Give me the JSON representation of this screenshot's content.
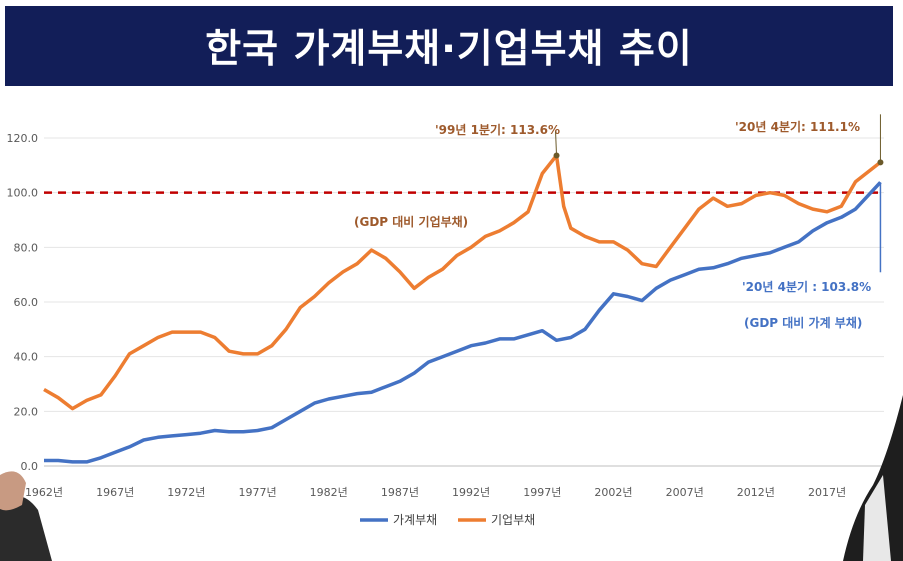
{
  "banner": {
    "title": "한국 가계부채·기업부채 추이"
  },
  "colors": {
    "banner": "#121e58",
    "household": "#4472c4",
    "corporate": "#ed7d31",
    "reference": "#c00000",
    "annotation_corp": "#9e5a2c",
    "annotation_hh": "#4472c4"
  },
  "chart_data": {
    "type": "line",
    "title": "",
    "xlabel": "",
    "ylabel": "",
    "ylim": [
      0,
      120
    ],
    "xlim": [
      1962,
      2021
    ],
    "y_ticks": [
      "0.0",
      "20.0",
      "40.0",
      "60.0",
      "80.0",
      "100.0",
      "120.0"
    ],
    "x_ticks": [
      "1962년",
      "1967년",
      "1972년",
      "1977년",
      "1982년",
      "1987년",
      "1992년",
      "1997년",
      "2002년",
      "2007년",
      "2012년",
      "2017년"
    ],
    "grid": "horizontal",
    "legend": "bottom",
    "reference_line": {
      "y": 100,
      "style": "dashed"
    },
    "series": [
      {
        "name": "가계부채",
        "x": [
          1962,
          1963,
          1964,
          1965,
          1966,
          1967,
          1968,
          1969,
          1970,
          1971,
          1972,
          1973,
          1974,
          1975,
          1976,
          1977,
          1978,
          1979,
          1980,
          1981,
          1982,
          1983,
          1984,
          1985,
          1986,
          1987,
          1988,
          1989,
          1990,
          1991,
          1992,
          1993,
          1994,
          1995,
          1996,
          1997,
          1998,
          1999,
          2000,
          2001,
          2002,
          2003,
          2004,
          2005,
          2006,
          2007,
          2008,
          2009,
          2010,
          2011,
          2012,
          2013,
          2014,
          2015,
          2016,
          2017,
          2018,
          2019,
          2020.75
        ],
        "values": [
          2,
          2,
          1.5,
          1.5,
          3,
          5,
          7,
          9.5,
          10.5,
          11,
          11.5,
          12,
          13,
          12.5,
          12.5,
          13,
          14,
          17,
          20,
          23,
          24.5,
          25.5,
          26.5,
          27,
          29,
          31,
          34,
          38,
          40,
          42,
          44,
          45,
          46.5,
          46.5,
          48,
          49.5,
          46,
          47,
          50,
          57,
          63,
          62,
          60.5,
          65,
          68,
          70,
          72,
          72.5,
          74,
          76,
          77,
          78,
          80,
          82,
          86,
          89,
          91,
          94,
          103.8
        ]
      },
      {
        "name": "기업부채",
        "x": [
          1962,
          1963,
          1964,
          1965,
          1966,
          1967,
          1968,
          1969,
          1970,
          1971,
          1972,
          1973,
          1974,
          1975,
          1976,
          1977,
          1978,
          1979,
          1980,
          1981,
          1982,
          1983,
          1984,
          1985,
          1986,
          1987,
          1988,
          1989,
          1990,
          1991,
          1992,
          1993,
          1994,
          1995,
          1996,
          1997,
          1998,
          1998.5,
          1999,
          2000,
          2001,
          2002,
          2003,
          2004,
          2005,
          2006,
          2007,
          2008,
          2009,
          2010,
          2011,
          2012,
          2013,
          2014,
          2015,
          2016,
          2017,
          2018,
          2019,
          2020.75
        ],
        "values": [
          28,
          25,
          21,
          24,
          26,
          33,
          41,
          44,
          47,
          49,
          49,
          49,
          47,
          42,
          41,
          41,
          44,
          50,
          58,
          62,
          67,
          71,
          74,
          79,
          76,
          71,
          65,
          69,
          72,
          77,
          80,
          84,
          86,
          89,
          93,
          107,
          113.6,
          95,
          87,
          84,
          82,
          82,
          79,
          74,
          73,
          80,
          87,
          94,
          98,
          95,
          96,
          99,
          100,
          99,
          96,
          94,
          93,
          95,
          104,
          111.1
        ]
      }
    ],
    "annotations": [
      {
        "text": "'99년 1분기: 113.6%",
        "x": 1998,
        "y": 113.6,
        "series": "기업부채"
      },
      {
        "text": "'20년 4분기: 111.1%",
        "x": 2020.75,
        "y": 111.1,
        "series": "기업부채"
      },
      {
        "text": "'20년 4분기 : 103.8%",
        "x": 2020.75,
        "y": 103.8,
        "series": "가계부채"
      },
      {
        "text": "(GDP 대비 기업부채)",
        "series": "기업부채"
      },
      {
        "text": "(GDP 대비 가계 부채)",
        "series": "가계부채"
      }
    ]
  }
}
